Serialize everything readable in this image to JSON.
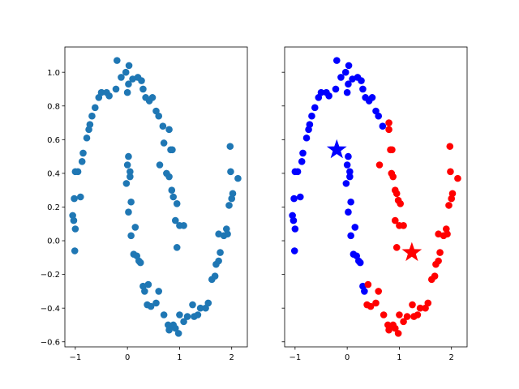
{
  "chart_data": [
    {
      "type": "scatter",
      "title": "",
      "xlabel": "",
      "ylabel": "",
      "xlim": [
        -1.2,
        2.3
      ],
      "ylim": [
        -0.63,
        1.15
      ],
      "xticks": [
        -1,
        0,
        1,
        2
      ],
      "yticks": [
        -0.6,
        -0.4,
        -0.2,
        0.0,
        0.2,
        0.4,
        0.6,
        0.8,
        1.0
      ],
      "xtick_labels": [
        "−1",
        "0",
        "1",
        "2"
      ],
      "ytick_labels": [
        "−0.6",
        "−0.4",
        "−0.2",
        "0.0",
        "0.2",
        "0.4",
        "0.6",
        "0.8",
        "1.0"
      ],
      "grid": false,
      "series": [
        {
          "color": "#1f77b4",
          "points": [
            [
              -0.2,
              1.07
            ],
            [
              -0.03,
              1.0
            ],
            [
              0.03,
              1.04
            ],
            [
              0.2,
              0.97
            ],
            [
              0.27,
              0.95
            ],
            [
              -0.12,
              0.97
            ],
            [
              0.1,
              0.96
            ],
            [
              0.02,
              0.93
            ],
            [
              -0.22,
              0.9
            ],
            [
              0.0,
              0.88
            ],
            [
              -0.4,
              0.88
            ],
            [
              -0.5,
              0.88
            ],
            [
              -0.55,
              0.85
            ],
            [
              -0.35,
              0.86
            ],
            [
              0.3,
              0.9
            ],
            [
              0.35,
              0.85
            ],
            [
              0.42,
              0.83
            ],
            [
              0.48,
              0.85
            ],
            [
              0.55,
              0.77
            ],
            [
              0.6,
              0.74
            ],
            [
              -0.62,
              0.79
            ],
            [
              -0.68,
              0.74
            ],
            [
              -0.72,
              0.69
            ],
            [
              -0.74,
              0.66
            ],
            [
              -0.78,
              0.61
            ],
            [
              0.68,
              0.68
            ],
            [
              0.8,
              0.66
            ],
            [
              0.83,
              0.54
            ],
            [
              0.86,
              0.54
            ],
            [
              -0.85,
              0.52
            ],
            [
              -0.87,
              0.47
            ],
            [
              -0.95,
              0.41
            ],
            [
              -1.0,
              0.41
            ],
            [
              -1.02,
              0.25
            ],
            [
              -0.9,
              0.26
            ],
            [
              -1.05,
              0.15
            ],
            [
              -1.03,
              0.12
            ],
            [
              -1.0,
              0.07
            ],
            [
              -1.01,
              -0.06
            ],
            [
              0.02,
              0.5
            ],
            [
              0.0,
              0.45
            ],
            [
              0.05,
              0.41
            ],
            [
              0.05,
              0.38
            ],
            [
              -0.02,
              0.34
            ],
            [
              0.07,
              0.23
            ],
            [
              0.02,
              0.17
            ],
            [
              0.15,
              0.08
            ],
            [
              0.07,
              0.03
            ],
            [
              0.12,
              -0.08
            ],
            [
              0.18,
              -0.09
            ],
            [
              0.22,
              -0.12
            ],
            [
              0.25,
              -0.13
            ],
            [
              0.3,
              -0.27
            ],
            [
              0.33,
              -0.3
            ],
            [
              0.4,
              -0.26
            ],
            [
              0.38,
              -0.38
            ],
            [
              0.45,
              -0.39
            ],
            [
              0.55,
              -0.37
            ],
            [
              0.6,
              -0.3
            ],
            [
              0.7,
              -0.44
            ],
            [
              0.78,
              -0.5
            ],
            [
              0.8,
              -0.53
            ],
            [
              0.88,
              -0.5
            ],
            [
              0.92,
              -0.52
            ],
            [
              0.98,
              -0.55
            ],
            [
              1.08,
              -0.48
            ],
            [
              1.0,
              -0.44
            ],
            [
              1.15,
              -0.45
            ],
            [
              1.25,
              -0.38
            ],
            [
              1.28,
              -0.45
            ],
            [
              1.35,
              -0.44
            ],
            [
              1.4,
              -0.4
            ],
            [
              1.5,
              -0.4
            ],
            [
              1.55,
              -0.37
            ],
            [
              1.62,
              -0.23
            ],
            [
              1.68,
              -0.21
            ],
            [
              1.7,
              -0.14
            ],
            [
              1.75,
              -0.12
            ],
            [
              1.78,
              -0.07
            ],
            [
              1.75,
              0.04
            ],
            [
              1.85,
              0.03
            ],
            [
              1.92,
              0.04
            ],
            [
              1.9,
              0.07
            ],
            [
              1.95,
              0.21
            ],
            [
              2.0,
              0.25
            ],
            [
              2.02,
              0.28
            ],
            [
              1.98,
              0.41
            ],
            [
              2.12,
              0.37
            ],
            [
              1.97,
              0.56
            ],
            [
              0.75,
              0.4
            ],
            [
              0.8,
              0.38
            ],
            [
              0.85,
              0.3
            ],
            [
              0.88,
              0.26
            ],
            [
              0.95,
              0.22
            ],
            [
              1.0,
              0.09
            ],
            [
              1.08,
              0.09
            ],
            [
              0.92,
              0.12
            ],
            [
              0.95,
              -0.04
            ],
            [
              0.62,
              0.45
            ],
            [
              0.7,
              0.58
            ]
          ]
        }
      ]
    },
    {
      "type": "scatter",
      "title": "",
      "xlabel": "",
      "ylabel": "",
      "xlim": [
        -1.2,
        2.3
      ],
      "ylim": [
        -0.63,
        1.15
      ],
      "xticks": [
        -1,
        0,
        1,
        2
      ],
      "yticks": [
        -0.6,
        -0.4,
        -0.2,
        0.0,
        0.2,
        0.4,
        0.6,
        0.8,
        1.0
      ],
      "xtick_labels": [
        "−1",
        "0",
        "1",
        "2"
      ],
      "ytick_labels": [],
      "grid": false,
      "series": [
        {
          "color": "#0000ff",
          "points": [
            [
              -0.2,
              1.07
            ],
            [
              -0.03,
              1.0
            ],
            [
              0.03,
              1.04
            ],
            [
              0.2,
              0.97
            ],
            [
              0.27,
              0.95
            ],
            [
              -0.12,
              0.97
            ],
            [
              0.1,
              0.96
            ],
            [
              0.02,
              0.93
            ],
            [
              -0.22,
              0.9
            ],
            [
              0.0,
              0.88
            ],
            [
              -0.4,
              0.88
            ],
            [
              -0.5,
              0.88
            ],
            [
              -0.55,
              0.85
            ],
            [
              -0.35,
              0.86
            ],
            [
              0.3,
              0.9
            ],
            [
              0.35,
              0.85
            ],
            [
              0.42,
              0.83
            ],
            [
              0.48,
              0.85
            ],
            [
              0.55,
              0.77
            ],
            [
              0.6,
              0.74
            ],
            [
              -0.62,
              0.79
            ],
            [
              -0.68,
              0.74
            ],
            [
              -0.72,
              0.69
            ],
            [
              -0.74,
              0.66
            ],
            [
              -0.78,
              0.61
            ],
            [
              0.68,
              0.68
            ],
            [
              -0.85,
              0.52
            ],
            [
              -0.87,
              0.47
            ],
            [
              -0.95,
              0.41
            ],
            [
              -1.0,
              0.41
            ],
            [
              -1.02,
              0.25
            ],
            [
              -0.9,
              0.26
            ],
            [
              -1.05,
              0.15
            ],
            [
              -1.03,
              0.12
            ],
            [
              -1.0,
              0.07
            ],
            [
              -1.01,
              -0.06
            ],
            [
              0.02,
              0.5
            ],
            [
              0.0,
              0.45
            ],
            [
              0.05,
              0.41
            ],
            [
              0.05,
              0.38
            ],
            [
              -0.02,
              0.34
            ],
            [
              0.07,
              0.23
            ],
            [
              0.02,
              0.17
            ],
            [
              0.15,
              0.08
            ],
            [
              0.07,
              0.03
            ],
            [
              0.12,
              -0.08
            ],
            [
              0.18,
              -0.09
            ],
            [
              0.22,
              -0.12
            ],
            [
              0.25,
              -0.13
            ],
            [
              0.3,
              -0.27
            ],
            [
              0.33,
              -0.3
            ]
          ]
        },
        {
          "color": "#ff0000",
          "points": [
            [
              0.8,
              0.66
            ],
            [
              0.83,
              0.54
            ],
            [
              0.86,
              0.54
            ],
            [
              0.8,
              0.7
            ],
            [
              0.4,
              -0.26
            ],
            [
              0.38,
              -0.38
            ],
            [
              0.45,
              -0.39
            ],
            [
              0.55,
              -0.37
            ],
            [
              0.6,
              -0.3
            ],
            [
              0.7,
              -0.44
            ],
            [
              0.78,
              -0.5
            ],
            [
              0.8,
              -0.53
            ],
            [
              0.88,
              -0.5
            ],
            [
              0.92,
              -0.52
            ],
            [
              0.98,
              -0.55
            ],
            [
              1.08,
              -0.48
            ],
            [
              1.0,
              -0.44
            ],
            [
              1.15,
              -0.45
            ],
            [
              1.25,
              -0.38
            ],
            [
              1.28,
              -0.45
            ],
            [
              1.35,
              -0.44
            ],
            [
              1.4,
              -0.4
            ],
            [
              1.5,
              -0.4
            ],
            [
              1.55,
              -0.37
            ],
            [
              1.62,
              -0.23
            ],
            [
              1.68,
              -0.21
            ],
            [
              1.7,
              -0.14
            ],
            [
              1.75,
              -0.12
            ],
            [
              1.78,
              -0.07
            ],
            [
              1.75,
              0.04
            ],
            [
              1.85,
              0.03
            ],
            [
              1.92,
              0.04
            ],
            [
              1.9,
              0.07
            ],
            [
              1.95,
              0.21
            ],
            [
              2.0,
              0.25
            ],
            [
              2.02,
              0.28
            ],
            [
              1.98,
              0.41
            ],
            [
              2.12,
              0.37
            ],
            [
              1.97,
              0.56
            ],
            [
              0.85,
              0.4
            ],
            [
              0.88,
              0.38
            ],
            [
              0.92,
              0.3
            ],
            [
              0.95,
              0.28
            ],
            [
              0.98,
              0.24
            ],
            [
              1.0,
              0.09
            ],
            [
              1.08,
              0.09
            ],
            [
              0.92,
              0.12
            ],
            [
              0.95,
              -0.04
            ],
            [
              0.62,
              0.45
            ],
            [
              1.02,
              0.22
            ]
          ]
        }
      ],
      "markers": [
        {
          "shape": "star",
          "color": "#0000ff",
          "point": [
            -0.2,
            0.54
          ]
        },
        {
          "shape": "star",
          "color": "#ff0000",
          "point": [
            1.24,
            -0.07
          ]
        }
      ]
    }
  ]
}
